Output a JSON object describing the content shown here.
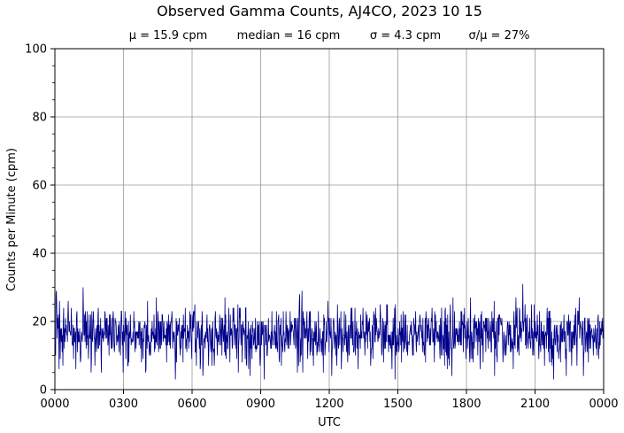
{
  "chart_data": {
    "type": "line",
    "title": "Observed Gamma Counts, AJ4CO, 2023 10 15",
    "stats": {
      "mean": "μ = 15.9 cpm",
      "median": "median = 16 cpm",
      "sigma": "σ = 4.3 cpm",
      "cv": "σ/μ = 27%"
    },
    "xlabel": "UTC",
    "ylabel": "Counts per Minute (cpm)",
    "xlim": [
      0,
      1440
    ],
    "ylim": [
      0,
      100
    ],
    "x_ticks": [
      0,
      180,
      360,
      540,
      720,
      900,
      1080,
      1260,
      1440
    ],
    "x_tick_labels": [
      "0000",
      "0300",
      "0600",
      "0900",
      "1200",
      "1500",
      "1800",
      "2100",
      "0000"
    ],
    "y_ticks": [
      0,
      20,
      40,
      60,
      80,
      100
    ],
    "y_tick_labels": [
      "0",
      "20",
      "40",
      "60",
      "80",
      "100"
    ],
    "grid": true,
    "series": [
      {
        "color": "#00008b",
        "sampling": "one value per minute, 1440 points",
        "stats_basis": {
          "mean": 15.9,
          "median": 16,
          "sd": 4.3
        },
        "values": []
      }
    ]
  }
}
